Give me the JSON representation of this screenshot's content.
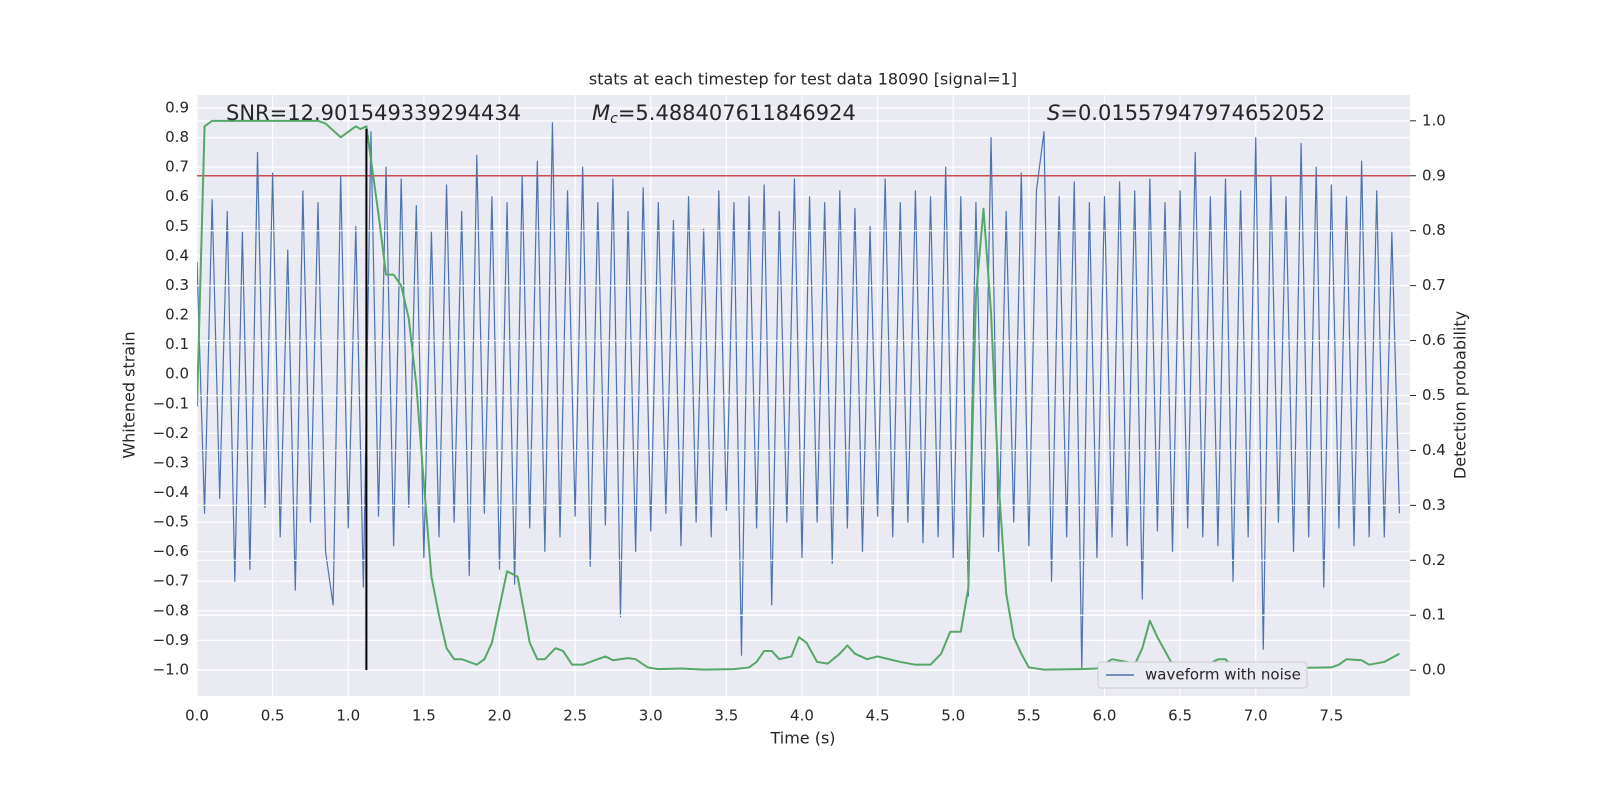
{
  "chart_data": {
    "type": "line",
    "title": "stats at each timestep for test data 18090 [signal=1]",
    "xlabel": "Time (s)",
    "ylabel": "Whitened strain",
    "y2label": "Detection probability",
    "annotations": [
      {
        "symbol": "SNR",
        "text": "=12.901549339294434"
      },
      {
        "symbol": "M",
        "subscript": "c",
        "text": "=5.488407611846924"
      },
      {
        "symbol": "S",
        "text": "=0.01557947974652052"
      }
    ],
    "xlim": [
      0,
      8.02
    ],
    "ylim": [
      -1.088,
      0.944
    ],
    "y2lim": [
      -0.047,
      1.047
    ],
    "xticks": [
      {
        "value": 0,
        "label": "0.0"
      },
      0.5,
      {
        "value": 1,
        "label": "1.0"
      },
      1.5,
      {
        "value": 2,
        "label": "2.0"
      },
      2.5,
      {
        "value": 3,
        "label": "3.0"
      },
      3.5,
      {
        "value": 4,
        "label": "4.0"
      },
      4.5,
      {
        "value": 5,
        "label": "5.0"
      },
      5.5,
      {
        "value": 6,
        "label": "6.0"
      },
      6.5,
      {
        "value": 7,
        "label": "7.0"
      },
      7.5
    ],
    "yticks": [
      {
        "value": -1.0,
        "label": "−1.0"
      },
      {
        "value": -0.9,
        "label": "−0.9"
      },
      {
        "value": -0.8,
        "label": "−0.8"
      },
      {
        "value": -0.7,
        "label": "−0.7"
      },
      {
        "value": -0.6,
        "label": "−0.6"
      },
      {
        "value": -0.5,
        "label": "−0.5"
      },
      {
        "value": -0.4,
        "label": "−0.4"
      },
      {
        "value": -0.3,
        "label": "−0.3"
      },
      {
        "value": -0.2,
        "label": "−0.2"
      },
      {
        "value": -0.1,
        "label": "−0.1"
      },
      {
        "value": 0,
        "label": "0.0"
      },
      0.1,
      0.2,
      0.3,
      0.4,
      0.5,
      0.6,
      0.7,
      0.8,
      0.9
    ],
    "y2ticks": [
      {
        "value": 0,
        "label": "0.0"
      },
      0.1,
      0.2,
      0.3,
      0.4,
      0.5,
      0.6,
      0.7,
      0.8,
      0.9,
      {
        "value": 1,
        "label": "1.0"
      }
    ],
    "grid": true,
    "legend": "lower right",
    "series": [
      {
        "name": "waveform with noise",
        "color": "#4c72b0",
        "x": [
          0,
          0.05,
          0.1,
          0.15,
          0.2,
          0.25,
          0.3,
          0.35,
          0.4,
          0.45,
          0.5,
          0.55,
          0.6,
          0.65,
          0.7,
          0.75,
          0.8,
          0.85,
          0.9,
          0.95,
          1,
          1.05,
          1.1,
          1.15,
          1.2,
          1.25,
          1.3,
          1.35,
          1.4,
          1.45,
          1.5,
          1.55,
          1.6,
          1.65,
          1.7,
          1.75,
          1.8,
          1.85,
          1.9,
          1.95,
          2,
          2.05,
          2.1,
          2.15,
          2.2,
          2.25,
          2.3,
          2.35,
          2.4,
          2.45,
          2.5,
          2.55,
          2.6,
          2.65,
          2.7,
          2.75,
          2.8,
          2.85,
          2.9,
          2.95,
          3,
          3.05,
          3.1,
          3.15,
          3.2,
          3.25,
          3.3,
          3.35,
          3.4,
          3.45,
          3.5,
          3.55,
          3.6,
          3.65,
          3.7,
          3.75,
          3.8,
          3.85,
          3.9,
          3.95,
          4,
          4.05,
          4.1,
          4.15,
          4.2,
          4.25,
          4.3,
          4.35,
          4.4,
          4.45,
          4.5,
          4.55,
          4.6,
          4.65,
          4.7,
          4.75,
          4.8,
          4.85,
          4.9,
          4.95,
          5,
          5.05,
          5.1,
          5.15,
          5.2,
          5.25,
          5.3,
          5.35,
          5.4,
          5.45,
          5.5,
          5.55,
          5.6,
          5.65,
          5.7,
          5.75,
          5.8,
          5.85,
          5.9,
          5.95,
          6,
          6.05,
          6.1,
          6.15,
          6.2,
          6.25,
          6.3,
          6.35,
          6.4,
          6.45,
          6.5,
          6.55,
          6.6,
          6.65,
          6.7,
          6.75,
          6.8,
          6.85,
          6.9,
          6.95,
          7,
          7.05,
          7.1,
          7.15,
          7.2,
          7.25,
          7.3,
          7.35,
          7.4,
          7.45,
          7.5,
          7.55,
          7.6,
          7.65,
          7.7,
          7.75,
          7.8,
          7.85,
          7.9,
          7.95
        ],
        "values": [
          0.38,
          -0.47,
          0.59,
          -0.42,
          0.55,
          -0.7,
          0.48,
          -0.66,
          0.75,
          -0.45,
          0.68,
          -0.55,
          0.42,
          -0.73,
          0.62,
          -0.5,
          0.58,
          -0.6,
          -0.78,
          0.67,
          -0.52,
          0.5,
          -0.72,
          0.82,
          -0.48,
          0.7,
          -0.58,
          0.66,
          -0.45,
          0.57,
          -0.62,
          0.48,
          -0.55,
          0.64,
          -0.5,
          0.55,
          -0.68,
          0.74,
          -0.47,
          0.6,
          -0.66,
          0.58,
          -0.71,
          0.67,
          -0.52,
          0.72,
          -0.6,
          0.85,
          -0.55,
          0.62,
          -0.48,
          0.7,
          -0.65,
          0.58,
          -0.51,
          0.66,
          -0.82,
          0.55,
          -0.6,
          0.63,
          -0.53,
          0.58,
          -0.47,
          0.52,
          -0.58,
          0.6,
          -0.5,
          0.49,
          -0.55,
          0.62,
          -0.46,
          0.58,
          -0.95,
          0.6,
          -0.52,
          0.64,
          -0.78,
          0.55,
          -0.5,
          0.66,
          -0.62,
          0.6,
          -0.5,
          0.58,
          -0.64,
          0.62,
          -0.52,
          0.56,
          -0.6,
          0.5,
          -0.48,
          0.66,
          -0.55,
          0.58,
          -0.5,
          0.62,
          -0.57,
          0.6,
          -0.55,
          0.7,
          -0.62,
          0.6,
          -0.75,
          0.58,
          -0.55,
          0.8,
          -0.6,
          0.55,
          -0.5,
          0.68,
          -0.58,
          0.62,
          0.82,
          -0.7,
          0.6,
          -0.55,
          0.65,
          -1.0,
          0.58,
          -0.62,
          0.6,
          -0.55,
          0.65,
          -0.58,
          0.62,
          -0.76,
          0.66,
          -0.53,
          0.58,
          -0.6,
          0.62,
          -0.52,
          0.75,
          -0.55,
          0.6,
          -0.58,
          0.66,
          -0.7,
          0.62,
          -0.55,
          0.8,
          -0.93,
          0.67,
          -0.5,
          0.6,
          -0.6,
          0.78,
          -0.55,
          0.7,
          -0.72,
          0.64,
          -0.52,
          0.6,
          -0.58,
          0.72,
          -0.55,
          0.62,
          -0.55,
          0.48,
          -0.47
        ]
      },
      {
        "color": "#55a868",
        "axis": "y2",
        "x": [
          0,
          0.05,
          0.1,
          0.2,
          0.4,
          0.6,
          0.8,
          0.85,
          0.95,
          1.05,
          1.08,
          1.12,
          1.15,
          1.2,
          1.25,
          1.3,
          1.35,
          1.4,
          1.45,
          1.5,
          1.55,
          1.6,
          1.65,
          1.7,
          1.75,
          1.85,
          1.9,
          1.95,
          2.05,
          2.12,
          2.2,
          2.25,
          2.3,
          2.37,
          2.42,
          2.48,
          2.55,
          2.65,
          2.7,
          2.75,
          2.85,
          2.9,
          2.98,
          3.05,
          3.2,
          3.35,
          3.55,
          3.65,
          3.7,
          3.75,
          3.8,
          3.85,
          3.93,
          3.98,
          4.03,
          4.1,
          4.17,
          4.25,
          4.3,
          4.35,
          4.43,
          4.5,
          4.65,
          4.75,
          4.85,
          4.92,
          4.98,
          5.05,
          5.1,
          5.15,
          5.2,
          5.25,
          5.3,
          5.35,
          5.4,
          5.45,
          5.5,
          5.6,
          5.85,
          5.95,
          6.05,
          6.15,
          6.2,
          6.25,
          6.3,
          6.35,
          6.45,
          6.55,
          6.65,
          6.75,
          6.8,
          6.85,
          7,
          7.1,
          7.25,
          7.5,
          7.55,
          7.6,
          7.7,
          7.75,
          7.85,
          7.95
        ],
        "values": [
          0.48,
          0.99,
          1.0,
          1.0,
          1.0,
          1.0,
          1.0,
          0.995,
          0.97,
          0.99,
          0.985,
          0.99,
          0.93,
          0.83,
          0.72,
          0.72,
          0.7,
          0.64,
          0.52,
          0.34,
          0.17,
          0.1,
          0.04,
          0.02,
          0.02,
          0.01,
          0.02,
          0.05,
          0.18,
          0.17,
          0.05,
          0.02,
          0.02,
          0.04,
          0.035,
          0.01,
          0.01,
          0.02,
          0.025,
          0.018,
          0.022,
          0.02,
          0.005,
          0.002,
          0.003,
          0.001,
          0.002,
          0.005,
          0.015,
          0.035,
          0.035,
          0.02,
          0.025,
          0.06,
          0.05,
          0.015,
          0.012,
          0.03,
          0.045,
          0.03,
          0.02,
          0.025,
          0.015,
          0.01,
          0.01,
          0.03,
          0.07,
          0.07,
          0.15,
          0.68,
          0.84,
          0.65,
          0.34,
          0.14,
          0.06,
          0.03,
          0.005,
          0.001,
          0.002,
          0.003,
          0.02,
          0.015,
          0.01,
          0.04,
          0.09,
          0.06,
          0.01,
          0.005,
          0.005,
          0.02,
          0.02,
          0.005,
          0.006,
          0.003,
          0.004,
          0.005,
          0.01,
          0.02,
          0.018,
          0.01,
          0.015,
          0.03
        ]
      }
    ],
    "hlines": [
      {
        "value": 0.9,
        "axis": "y2",
        "color": "#c44e52"
      }
    ],
    "vlines": [
      {
        "x": 1.12,
        "ymin": -1.0,
        "ymax": 0.83,
        "color": "#000000"
      }
    ]
  }
}
